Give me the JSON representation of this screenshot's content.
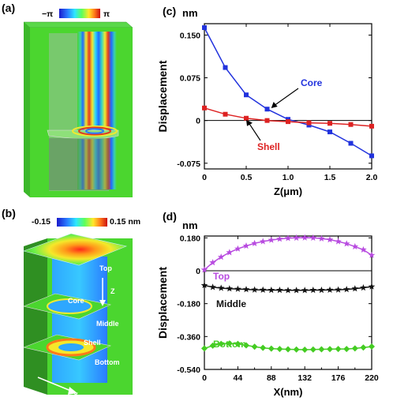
{
  "panels": {
    "a": "(a)",
    "b": "(b)",
    "c": "(c)",
    "d": "(d)"
  },
  "colorbar_a": {
    "min": "−π",
    "max": "π"
  },
  "colorbar_b": {
    "min": "-0.15",
    "max": "0.15 nm"
  },
  "image_b_labels": {
    "top": "Top",
    "middle": "Middle",
    "bottom": "Bottom",
    "core": "Core",
    "shell": "Shell",
    "z": "Z",
    "x": "X"
  },
  "colors": {
    "core": "#2233dd",
    "shell": "#dd2222",
    "top": "#b84be0",
    "middle": "#111111",
    "bottom": "#44cc22",
    "green_bg": "#4bd62f"
  },
  "chart_data": [
    {
      "id": "c",
      "type": "line",
      "unit_label": "nm",
      "ylabel": "Displacement",
      "xlabel": "Z(μm)",
      "xlim": [
        0,
        2.0
      ],
      "ylim": [
        -0.085,
        0.17
      ],
      "xticks": [
        "0",
        "0.5",
        "1.0",
        "1.5",
        "2.0"
      ],
      "xtick_values": [
        0,
        0.5,
        1.0,
        1.5,
        2.0
      ],
      "yticks": [
        "0.150",
        "0.075",
        "0",
        "-0.075"
      ],
      "ytick_values": [
        0.15,
        0.075,
        0,
        -0.075
      ],
      "series": [
        {
          "name": "Core",
          "color": "#2233dd",
          "marker": "square",
          "x": [
            0,
            0.25,
            0.5,
            0.75,
            1.0,
            1.25,
            1.5,
            1.75,
            2.0
          ],
          "y": [
            0.163,
            0.093,
            0.045,
            0.02,
            0.002,
            -0.008,
            -0.02,
            -0.04,
            -0.062
          ]
        },
        {
          "name": "Shell",
          "color": "#dd2222",
          "marker": "square",
          "x": [
            0,
            0.25,
            0.5,
            0.75,
            1.0,
            1.25,
            1.5,
            1.75,
            2.0
          ],
          "y": [
            0.022,
            0.011,
            0.004,
            0.0,
            -0.002,
            -0.004,
            -0.005,
            -0.007,
            -0.01
          ]
        }
      ]
    },
    {
      "id": "d",
      "type": "line",
      "unit_label": "nm",
      "ylabel": "Displacement",
      "xlabel": "X(nm)",
      "xlim": [
        0,
        220
      ],
      "ylim": [
        -0.54,
        0.19
      ],
      "xticks": [
        "0",
        "44",
        "88",
        "132",
        "176",
        "220"
      ],
      "xtick_values": [
        0,
        44,
        88,
        132,
        176,
        220
      ],
      "minor_xticks": [
        "22",
        "66",
        "110",
        "154",
        "198"
      ],
      "minor_xtick_values": [
        22,
        66,
        110,
        154,
        198
      ],
      "yticks": [
        "0.180",
        "0",
        "-0.180",
        "-0.360",
        "-0.540"
      ],
      "ytick_values": [
        0.18,
        0,
        -0.18,
        -0.36,
        -0.54
      ],
      "series": [
        {
          "name": "Top",
          "color": "#b84be0",
          "marker": "star",
          "x": [
            0,
            11,
            22,
            33,
            44,
            55,
            66,
            77,
            88,
            99,
            110,
            121,
            132,
            143,
            154,
            165,
            176,
            187,
            198,
            209,
            220
          ],
          "y": [
            0.005,
            0.045,
            0.075,
            0.1,
            0.12,
            0.136,
            0.15,
            0.16,
            0.168,
            0.174,
            0.178,
            0.18,
            0.181,
            0.18,
            0.176,
            0.17,
            0.16,
            0.148,
            0.132,
            0.115,
            0.085
          ]
        },
        {
          "name": "Middle",
          "color": "#111111",
          "marker": "star",
          "x": [
            0,
            11,
            22,
            33,
            44,
            55,
            66,
            77,
            88,
            99,
            110,
            121,
            132,
            143,
            154,
            165,
            176,
            187,
            198,
            209,
            220
          ],
          "y": [
            -0.08,
            -0.09,
            -0.095,
            -0.098,
            -0.1,
            -0.102,
            -0.104,
            -0.105,
            -0.106,
            -0.106,
            -0.107,
            -0.107,
            -0.107,
            -0.106,
            -0.106,
            -0.105,
            -0.104,
            -0.102,
            -0.098,
            -0.093,
            -0.087
          ]
        },
        {
          "name": "Bottom",
          "color": "#44cc22",
          "marker": "diamond",
          "x": [
            0,
            11,
            22,
            33,
            44,
            55,
            66,
            77,
            88,
            99,
            110,
            121,
            132,
            143,
            154,
            165,
            176,
            187,
            198,
            209,
            220
          ],
          "y": [
            -0.425,
            -0.41,
            -0.4,
            -0.398,
            -0.4,
            -0.408,
            -0.416,
            -0.422,
            -0.426,
            -0.428,
            -0.43,
            -0.431,
            -0.432,
            -0.431,
            -0.43,
            -0.429,
            -0.428,
            -0.428,
            -0.425,
            -0.42,
            -0.415
          ]
        }
      ]
    }
  ]
}
